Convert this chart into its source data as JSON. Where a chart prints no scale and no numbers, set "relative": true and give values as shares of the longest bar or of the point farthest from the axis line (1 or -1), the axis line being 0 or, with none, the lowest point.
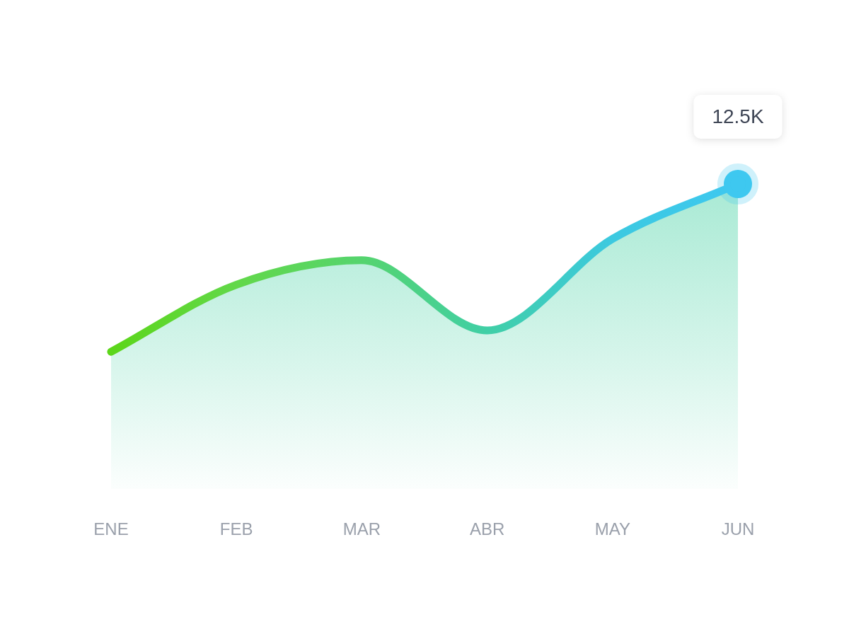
{
  "chart_data": {
    "type": "area",
    "relative": true,
    "categories": [
      "ENE",
      "FEB",
      "MAR",
      "ABR",
      "MAY",
      "JUN"
    ],
    "series": [
      {
        "color": "#3fd0a0",
        "colors": [
          "#5cd61a",
          "#62d84a",
          "#55d46e",
          "#40cfa6",
          "#3cc9e0",
          "#3ec8f0"
        ],
        "values": [
          0.45,
          0.67,
          0.75,
          0.52,
          0.82,
          1
        ]
      }
    ],
    "annotations": [
      "12.5K"
    ],
    "grid": false,
    "legend": false
  }
}
